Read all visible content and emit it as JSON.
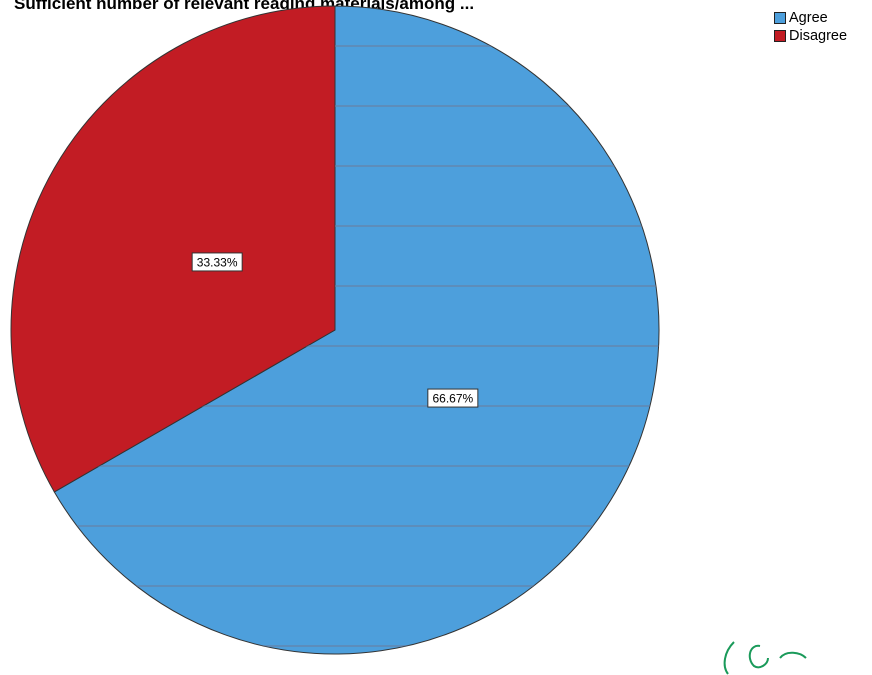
{
  "chart_data": {
    "type": "pie",
    "title": "Sufficient number of relevant reading materials/among ...",
    "categories": [
      "Agree",
      "Disagree"
    ],
    "values": [
      66.67,
      33.33
    ],
    "data_labels": [
      "66.67%",
      "33.33%"
    ],
    "colors": [
      "#4d9fdc",
      "#c21c24"
    ],
    "legend_position": "top-right",
    "start_angle_deg": 0,
    "direction": "clockwise"
  },
  "legend": {
    "items": [
      {
        "label": "Agree",
        "color": "#4d9fdc"
      },
      {
        "label": "Disagree",
        "color": "#c21c24"
      }
    ]
  }
}
